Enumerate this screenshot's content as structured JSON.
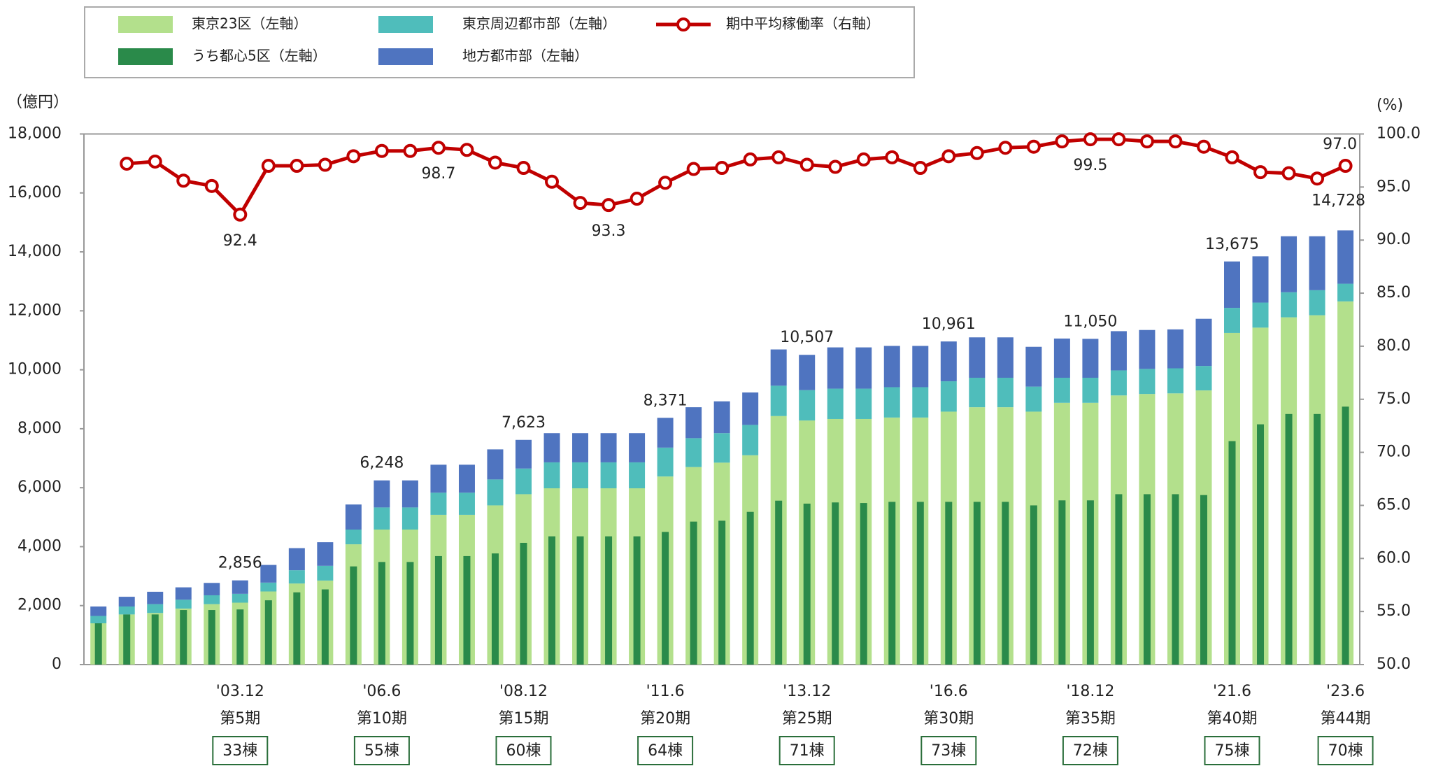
{
  "chart_data": {
    "type": "bar",
    "y_unit": "（億円）",
    "y2_unit": "(%)",
    "categories": [
      null,
      null,
      null,
      null,
      null,
      "'03.12",
      null,
      null,
      null,
      null,
      "'06.6",
      null,
      null,
      null,
      null,
      "'08.12",
      null,
      null,
      null,
      null,
      "'11.6",
      null,
      null,
      null,
      null,
      "'13.12",
      null,
      null,
      null,
      null,
      "'16.6",
      null,
      null,
      null,
      null,
      "'18.12",
      null,
      null,
      null,
      null,
      "'21.6",
      null,
      null,
      null,
      "'23.6"
    ],
    "periods": [
      null,
      null,
      null,
      null,
      null,
      "第5期",
      null,
      null,
      null,
      null,
      "第10期",
      null,
      null,
      null,
      null,
      "第15期",
      null,
      null,
      null,
      null,
      "第20期",
      null,
      null,
      null,
      null,
      "第25期",
      null,
      null,
      null,
      null,
      "第30期",
      null,
      null,
      null,
      null,
      "第35期",
      null,
      null,
      null,
      null,
      "第40期",
      null,
      null,
      null,
      "第44期"
    ],
    "buildings": [
      null,
      null,
      null,
      null,
      null,
      "33棟",
      null,
      null,
      null,
      null,
      "55棟",
      null,
      null,
      null,
      null,
      "60棟",
      null,
      null,
      null,
      null,
      "64棟",
      null,
      null,
      null,
      null,
      "71棟",
      null,
      null,
      null,
      null,
      "73棟",
      null,
      null,
      null,
      null,
      "72棟",
      null,
      null,
      null,
      null,
      "75棟",
      null,
      null,
      null,
      "70棟"
    ],
    "series": [
      {
        "name": "東京23区（左軸）",
        "color": "#b3e08c",
        "values": [
          1400,
          1700,
          1750,
          1900,
          2050,
          2100,
          2480,
          2750,
          2850,
          4080,
          4580,
          4580,
          5080,
          5080,
          5400,
          5780,
          5980,
          5980,
          5980,
          5980,
          6380,
          6700,
          6850,
          7100,
          8430,
          8280,
          8330,
          8330,
          8380,
          8380,
          8580,
          8730,
          8730,
          8580,
          8880,
          8880,
          9130,
          9180,
          9200,
          9300,
          11250,
          11430,
          11780,
          11850,
          12320
        ]
      },
      {
        "name": "うち都心5区（左軸）",
        "color": "#2a8a4a",
        "overlay": true,
        "values": [
          1400,
          1700,
          1700,
          1850,
          1850,
          1870,
          2180,
          2450,
          2550,
          3330,
          3480,
          3480,
          3680,
          3680,
          3770,
          4130,
          4350,
          4350,
          4350,
          4350,
          4500,
          4850,
          4880,
          5180,
          5560,
          5460,
          5500,
          5480,
          5520,
          5520,
          5520,
          5520,
          5520,
          5400,
          5570,
          5570,
          5780,
          5780,
          5780,
          5750,
          7580,
          8150,
          8500,
          8500,
          8750
        ]
      },
      {
        "name": "東京周辺都市部（左軸）",
        "color": "#4fbdbb",
        "values": [
          250,
          270,
          300,
          300,
          300,
          300,
          300,
          450,
          500,
          500,
          750,
          750,
          750,
          750,
          880,
          870,
          880,
          880,
          880,
          880,
          980,
          980,
          1000,
          1030,
          1030,
          1030,
          1030,
          1030,
          1030,
          1030,
          1030,
          1000,
          1000,
          850,
          850,
          850,
          850,
          850,
          850,
          830,
          850,
          850,
          850,
          850,
          600
        ]
      },
      {
        "name": "地方都市部（左軸）",
        "color": "#4f74c0",
        "values": [
          320,
          330,
          420,
          420,
          420,
          456,
          600,
          750,
          800,
          850,
          918,
          918,
          950,
          950,
          1020,
          973,
          990,
          990,
          990,
          990,
          1011,
          1050,
          1080,
          1100,
          1230,
          1197,
          1400,
          1400,
          1400,
          1400,
          1351,
          1370,
          1370,
          1350,
          1330,
          1320,
          1330,
          1320,
          1320,
          1600,
          1575,
          1570,
          1900,
          1830,
          1808
        ]
      },
      {
        "name": "期中平均稼働率（右軸）",
        "color": "#c00000",
        "axis": "y2",
        "type": "line",
        "values": [
          null,
          97.2,
          97.4,
          95.6,
          95.1,
          92.4,
          97.0,
          97.0,
          97.1,
          97.9,
          98.4,
          98.4,
          98.7,
          98.5,
          97.3,
          96.8,
          95.5,
          93.5,
          93.3,
          93.9,
          95.4,
          96.7,
          96.8,
          97.6,
          97.8,
          97.1,
          96.9,
          97.6,
          97.8,
          96.8,
          97.9,
          98.2,
          98.7,
          98.8,
          99.3,
          99.5,
          99.5,
          99.3,
          99.3,
          98.8,
          97.8,
          96.4,
          96.3,
          95.8,
          97.0
        ],
        "value_labels": [
          null,
          null,
          null,
          null,
          null,
          "92.4",
          null,
          null,
          null,
          null,
          null,
          null,
          "98.7",
          null,
          null,
          null,
          null,
          null,
          "93.3",
          null,
          null,
          null,
          null,
          null,
          null,
          null,
          null,
          null,
          null,
          null,
          null,
          null,
          null,
          null,
          null,
          "99.5",
          null,
          null,
          null,
          null,
          null,
          null,
          null,
          null,
          "97.0"
        ]
      }
    ],
    "totals": [
      {
        "index": 5,
        "value": 2856,
        "label": "2,856"
      },
      {
        "index": 10,
        "value": 6248,
        "label": "6,248"
      },
      {
        "index": 15,
        "value": 7623,
        "label": "7,623"
      },
      {
        "index": 20,
        "value": 8371,
        "label": "8,371"
      },
      {
        "index": 25,
        "value": 10507,
        "label": "10,507"
      },
      {
        "index": 30,
        "value": 10961,
        "label": "10,961"
      },
      {
        "index": 35,
        "value": 11050,
        "label": "11,050"
      },
      {
        "index": 40,
        "value": 13675,
        "label": "13,675"
      },
      {
        "index": 44,
        "value": 14728,
        "label": "14,728"
      }
    ],
    "ylim": [
      0,
      18000
    ],
    "yticks": [
      0,
      {
        "value": 2000,
        "label": "2,000"
      },
      {
        "value": 4000,
        "label": "4,000"
      },
      {
        "value": 6000,
        "label": "6,000"
      },
      {
        "value": 8000,
        "label": "8,000"
      },
      {
        "value": 10000,
        "label": "10,000"
      },
      {
        "value": 12000,
        "label": "12,000"
      },
      {
        "value": 14000,
        "label": "14,000"
      },
      {
        "value": 16000,
        "label": "16,000"
      },
      {
        "value": 18000,
        "label": "18,000"
      }
    ],
    "y2lim": [
      50,
      100
    ],
    "y2ticks": [
      {
        "value": 50,
        "label": "50.0"
      },
      {
        "value": 55,
        "label": "55.0"
      },
      {
        "value": 60,
        "label": "60.0"
      },
      {
        "value": 65,
        "label": "65.0"
      },
      {
        "value": 70,
        "label": "70.0"
      },
      {
        "value": 75,
        "label": "75.0"
      },
      {
        "value": 80,
        "label": "80.0"
      },
      {
        "value": 85,
        "label": "85.0"
      },
      {
        "value": 90,
        "label": "90.0"
      },
      {
        "value": 95,
        "label": "95.0"
      },
      {
        "value": 100,
        "label": "100.0"
      }
    ],
    "legend": "top"
  }
}
